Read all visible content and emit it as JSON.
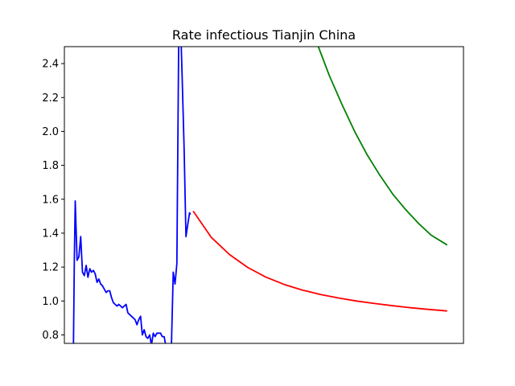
{
  "chart_data": {
    "type": "line",
    "title": "Rate infectious Tianjin China",
    "xlabel": "",
    "ylabel": "",
    "xlim": [
      -5,
      215
    ],
    "ylim": [
      0.75,
      2.5
    ],
    "grid": false,
    "legend": "none",
    "yticks": [
      "0.8",
      "1.0",
      "1.2",
      "1.4",
      "1.6",
      "1.8",
      "2.0",
      "2.2",
      "2.4"
    ],
    "series": [
      {
        "color": "#0000ff",
        "x": [
          0,
          0.5,
          1,
          2,
          3,
          4,
          5,
          6,
          7,
          8,
          9,
          10,
          11,
          12,
          13,
          14,
          15,
          16,
          17,
          18,
          19,
          20,
          21,
          22,
          23,
          24,
          25,
          26,
          27,
          28,
          29,
          30,
          31,
          32,
          33,
          34,
          35,
          36,
          37,
          38,
          39,
          40,
          41,
          42,
          43,
          44,
          45,
          46,
          47,
          48,
          49,
          50,
          51,
          52,
          53,
          54,
          55,
          56,
          57,
          58,
          59,
          60,
          61,
          62,
          63,
          64,
          64.5
        ],
        "y": [
          0.75,
          1.25,
          1.59,
          1.24,
          1.26,
          1.38,
          1.17,
          1.15,
          1.21,
          1.14,
          1.19,
          1.17,
          1.18,
          1.16,
          1.11,
          1.13,
          1.1,
          1.09,
          1.07,
          1.05,
          1.06,
          1.06,
          1.02,
          0.99,
          0.98,
          0.97,
          0.98,
          0.97,
          0.96,
          0.97,
          0.98,
          0.93,
          0.92,
          0.91,
          0.9,
          0.89,
          0.86,
          0.89,
          0.91,
          0.8,
          0.83,
          0.79,
          0.78,
          0.8,
          0.74,
          0.81,
          0.79,
          0.81,
          0.81,
          0.81,
          0.79,
          0.79,
          0.73,
          0.65,
          0.7,
          0.73,
          1.17,
          1.1,
          1.22,
          2.5,
          2.65,
          2.3,
          1.9,
          1.38,
          1.45,
          1.52,
          1.51
        ]
      },
      {
        "color": "#ff0000",
        "x": [
          66,
          76,
          86,
          96,
          106,
          116,
          126,
          136,
          146,
          156,
          166,
          176,
          186,
          196,
          206
        ],
        "y": [
          1.53,
          1.375,
          1.274,
          1.198,
          1.141,
          1.098,
          1.065,
          1.039,
          1.018,
          1.0,
          0.985,
          0.972,
          0.96,
          0.95,
          0.941
        ],
        "asymptote": 0.9
      },
      {
        "color": "#008000",
        "x": [
          135,
          141,
          148,
          155,
          162,
          169,
          176,
          183,
          190,
          197,
          206
        ],
        "y": [
          2.5,
          2.33,
          2.16,
          2.0,
          1.86,
          1.74,
          1.63,
          1.54,
          1.46,
          1.39,
          1.33
        ]
      }
    ]
  }
}
